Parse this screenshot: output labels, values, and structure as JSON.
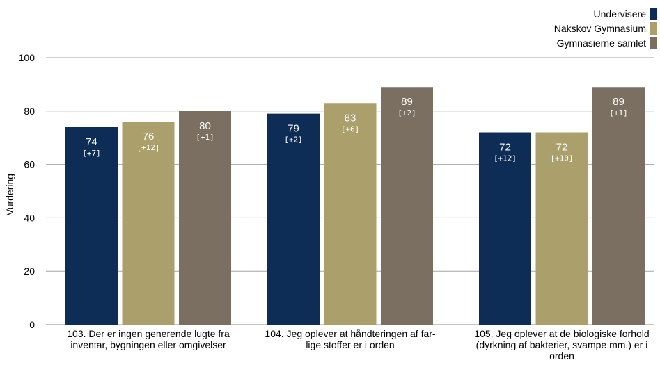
{
  "chart_data": {
    "type": "bar",
    "ylabel": "Vurdering",
    "ylim": [
      0,
      100
    ],
    "yticks": [
      0,
      20,
      40,
      60,
      80,
      100
    ],
    "grid": true,
    "legend_position": "top-right",
    "categories": [
      [
        "103. Der er ingen generende lugte fra",
        "inventar, bygningen eller omgivelser"
      ],
      [
        "104. Jeg oplever at håndteringen af far-",
        "lige stoffer er i orden"
      ],
      [
        "105. Jeg oplever at de biologiske forhold",
        "(dyrkning af bakterier, svampe mm.) er i",
        "orden"
      ]
    ],
    "series": [
      {
        "name": "Undervisere",
        "color": "#0d2d56",
        "values": [
          74,
          79,
          72
        ],
        "labels": [
          "74",
          "79",
          "72"
        ],
        "deltas": [
          "[+7]",
          "[+2]",
          "[+12]"
        ]
      },
      {
        "name": "Nakskov Gymnasium",
        "color": "#ab9f6c",
        "values": [
          76,
          83,
          72
        ],
        "labels": [
          "76",
          "83",
          "72"
        ],
        "deltas": [
          "[+12]",
          "[+6]",
          "[+10]"
        ]
      },
      {
        "name": "Gymnasierne samlet",
        "color": "#7a6f60",
        "values": [
          80,
          89,
          89
        ],
        "labels": [
          "80",
          "89",
          "89"
        ],
        "deltas": [
          "[+1]",
          "[+2]",
          "[+1]"
        ]
      }
    ]
  }
}
